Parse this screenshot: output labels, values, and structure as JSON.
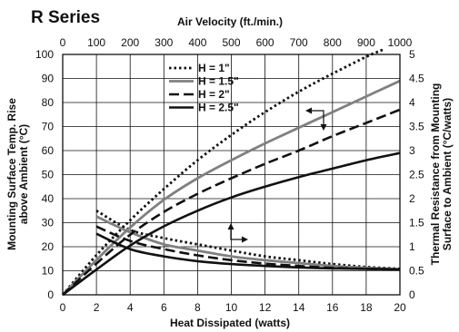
{
  "chart_data": {
    "type": "line",
    "title": "R Series",
    "xlabel": "Heat Dissipated (watts)",
    "x2label": "Air Velocity (ft./min.)",
    "ylabel": "Mounting Surface Temp. Rise above Ambient (°C)",
    "y2label": "Thermal Resistance from Mounting Surface to Ambient (°C/watts)",
    "xlim": [
      0,
      20
    ],
    "x2lim": [
      0,
      1000
    ],
    "ylim": [
      0,
      100
    ],
    "y2lim": [
      0,
      5
    ],
    "x_ticks": [
      "0",
      "2",
      "4",
      "6",
      "8",
      "10",
      "12",
      "14",
      "16",
      "18",
      "20"
    ],
    "x2_ticks": [
      "0",
      "100",
      "200",
      "300",
      "400",
      "500",
      "600",
      "700",
      "800",
      "900",
      "1000"
    ],
    "y_ticks": [
      "0",
      "10",
      "20",
      "30",
      "40",
      "50",
      "60",
      "70",
      "80",
      "90",
      "100"
    ],
    "y2_ticks": [
      "0",
      "0.5",
      "1",
      "1.5",
      "2",
      "2.5",
      "3",
      "3.5",
      "4",
      "4.5",
      "5"
    ],
    "grid": true,
    "legend_position": "top-center",
    "series": [
      {
        "name": "H = 1\"",
        "style": "dotted",
        "color": "#111111",
        "temp_rise": [
          [
            0,
            0
          ],
          [
            2,
            16.5
          ],
          [
            4,
            31
          ],
          [
            6,
            44
          ],
          [
            8,
            56
          ],
          [
            10,
            66.5
          ],
          [
            12,
            76
          ],
          [
            14,
            84.5
          ],
          [
            16,
            92
          ],
          [
            18,
            99
          ],
          [
            19,
            102
          ]
        ],
        "thermal_resistance": [
          [
            100,
            1.75
          ],
          [
            200,
            1.35
          ],
          [
            300,
            1.18
          ],
          [
            400,
            1.05
          ],
          [
            500,
            0.92
          ],
          [
            600,
            0.8
          ],
          [
            700,
            0.72
          ],
          [
            800,
            0.64
          ],
          [
            900,
            0.58
          ],
          [
            1000,
            0.54
          ]
        ]
      },
      {
        "name": "H = 1.5\"",
        "style": "solid-gray",
        "color": "#808080",
        "temp_rise": [
          [
            0,
            0
          ],
          [
            2,
            14.5
          ],
          [
            4,
            28
          ],
          [
            6,
            39.5
          ],
          [
            8,
            48.5
          ],
          [
            10,
            56
          ],
          [
            12,
            63
          ],
          [
            14,
            69.5
          ],
          [
            16,
            76
          ],
          [
            18,
            82.5
          ],
          [
            20,
            89
          ]
        ],
        "thermal_resistance": [
          [
            100,
            1.63
          ],
          [
            200,
            1.3
          ],
          [
            300,
            1.05
          ],
          [
            400,
            0.92
          ],
          [
            500,
            0.8
          ],
          [
            600,
            0.72
          ],
          [
            700,
            0.66
          ],
          [
            800,
            0.6
          ],
          [
            900,
            0.56
          ],
          [
            1000,
            0.53
          ]
        ]
      },
      {
        "name": "H = 2\"",
        "style": "dashed",
        "color": "#111111",
        "temp_rise": [
          [
            0,
            0
          ],
          [
            2,
            13
          ],
          [
            4,
            25
          ],
          [
            6,
            34.5
          ],
          [
            8,
            42
          ],
          [
            10,
            48.5
          ],
          [
            12,
            54.5
          ],
          [
            14,
            60
          ],
          [
            16,
            66
          ],
          [
            18,
            71.5
          ],
          [
            20,
            77
          ]
        ],
        "thermal_resistance": [
          [
            100,
            1.42
          ],
          [
            200,
            1.12
          ],
          [
            300,
            0.95
          ],
          [
            400,
            0.82
          ],
          [
            500,
            0.72
          ],
          [
            600,
            0.65
          ],
          [
            700,
            0.6
          ],
          [
            800,
            0.56
          ],
          [
            900,
            0.54
          ],
          [
            1000,
            0.53
          ]
        ]
      },
      {
        "name": "H = 2.5\"",
        "style": "solid",
        "color": "#111111",
        "temp_rise": [
          [
            0,
            0
          ],
          [
            2,
            10.5
          ],
          [
            4,
            20.5
          ],
          [
            6,
            28.5
          ],
          [
            8,
            35
          ],
          [
            10,
            40.5
          ],
          [
            12,
            45
          ],
          [
            14,
            49
          ],
          [
            16,
            52.5
          ],
          [
            18,
            56
          ],
          [
            20,
            59
          ]
        ],
        "thermal_resistance": [
          [
            100,
            1.27
          ],
          [
            200,
            0.95
          ],
          [
            300,
            0.8
          ],
          [
            400,
            0.7
          ],
          [
            500,
            0.64
          ],
          [
            600,
            0.6
          ],
          [
            700,
            0.57
          ],
          [
            800,
            0.55
          ],
          [
            900,
            0.54
          ],
          [
            1000,
            0.53
          ]
        ]
      }
    ]
  }
}
